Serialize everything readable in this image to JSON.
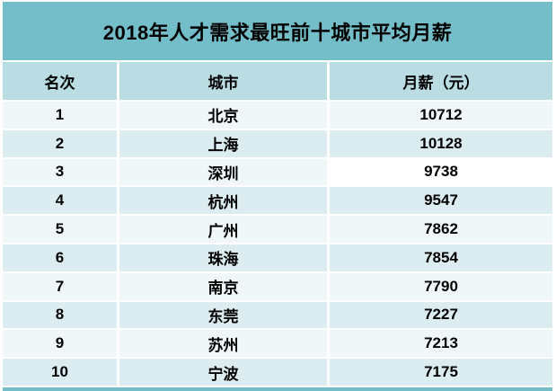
{
  "title": "2018年人才需求最旺前十城市平均月薪",
  "table": {
    "columns": [
      "名次",
      "城市",
      "月薪（元）"
    ],
    "rows": [
      {
        "rank": "1",
        "city": "北京",
        "salary": "10712"
      },
      {
        "rank": "2",
        "city": "上海",
        "salary": "10128"
      },
      {
        "rank": "3",
        "city": "深圳",
        "salary": "9738"
      },
      {
        "rank": "4",
        "city": "杭州",
        "salary": "9547"
      },
      {
        "rank": "5",
        "city": "广州",
        "salary": "7862"
      },
      {
        "rank": "6",
        "city": "珠海",
        "salary": "7854"
      },
      {
        "rank": "7",
        "city": "南京",
        "salary": "7790"
      },
      {
        "rank": "8",
        "city": "东莞",
        "salary": "7227"
      },
      {
        "rank": "9",
        "city": "苏州",
        "salary": "7213"
      },
      {
        "rank": "10",
        "city": "宁波",
        "salary": "7175"
      }
    ]
  },
  "colors": {
    "title_bar": "#73bec8",
    "header_row": "#b9dde2",
    "row_odd": "#eff7f9",
    "row_even": "#dcedf1",
    "highlight_cell_row3_salary": "#ffffff",
    "footer_strip": "#73bec8",
    "text": "#000000"
  },
  "chart_data": {
    "type": "table",
    "title": "2018年人才需求最旺前十城市平均月薪",
    "columns": [
      "名次",
      "城市",
      "月薪（元）"
    ],
    "rows": [
      [
        1,
        "北京",
        10712
      ],
      [
        2,
        "上海",
        10128
      ],
      [
        3,
        "深圳",
        9738
      ],
      [
        4,
        "杭州",
        9547
      ],
      [
        5,
        "广州",
        7862
      ],
      [
        6,
        "珠海",
        7854
      ],
      [
        7,
        "南京",
        7790
      ],
      [
        8,
        "东莞",
        7227
      ],
      [
        9,
        "苏州",
        7213
      ],
      [
        10,
        "宁波",
        7175
      ]
    ]
  }
}
